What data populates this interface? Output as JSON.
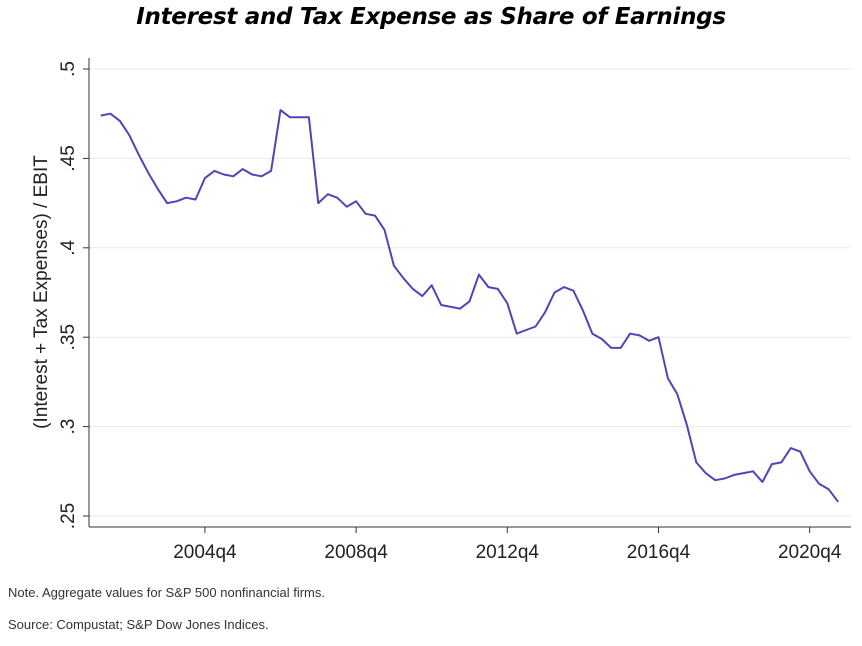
{
  "chart_data": {
    "type": "line",
    "title": "Interest and Tax Expense as Share of Earnings",
    "xlabel": "",
    "ylabel": "(Interest + Tax Expenses) / EBIT",
    "x_ticks": [
      "2004q4",
      "2008q4",
      "2012q4",
      "2016q4",
      "2020q4"
    ],
    "y_ticks": [
      ".25",
      ".3",
      ".35",
      ".4",
      ".45",
      ".5"
    ],
    "ylim": [
      0.25,
      0.5
    ],
    "xlim": [
      "2002q1",
      "2021q3"
    ],
    "grid": "horizontal",
    "line_color": "#4b47b8",
    "series": [
      {
        "x": [
          "2002q1",
          "2002q2",
          "2002q3",
          "2002q4",
          "2003q1",
          "2003q2",
          "2003q3",
          "2003q4",
          "2004q1",
          "2004q2",
          "2004q3",
          "2004q4",
          "2005q1",
          "2005q2",
          "2005q3",
          "2005q4",
          "2006q1",
          "2006q2",
          "2006q3",
          "2006q4",
          "2007q1",
          "2007q2",
          "2007q3",
          "2007q4",
          "2008q1",
          "2008q2",
          "2008q3",
          "2008q4",
          "2009q1",
          "2009q2",
          "2009q3",
          "2009q4",
          "2010q1",
          "2010q2",
          "2010q3",
          "2010q4",
          "2011q1",
          "2011q2",
          "2011q3",
          "2011q4",
          "2012q1",
          "2012q2",
          "2012q3",
          "2012q4",
          "2013q1",
          "2013q2",
          "2013q3",
          "2013q4",
          "2014q1",
          "2014q2",
          "2014q3",
          "2014q4",
          "2015q1",
          "2015q2",
          "2015q3",
          "2015q4",
          "2016q1",
          "2016q2",
          "2016q3",
          "2016q4",
          "2017q1",
          "2017q2",
          "2017q3",
          "2017q4",
          "2018q1",
          "2018q2",
          "2018q3",
          "2018q4",
          "2019q1",
          "2019q2",
          "2019q3",
          "2019q4",
          "2020q1",
          "2020q2",
          "2020q3",
          "2020q4",
          "2021q1",
          "2021q2",
          "2021q3"
        ],
        "values": [
          0.474,
          0.475,
          0.471,
          0.463,
          0.452,
          0.442,
          0.433,
          0.425,
          0.426,
          0.428,
          0.427,
          0.439,
          0.443,
          0.441,
          0.44,
          0.444,
          0.441,
          0.44,
          0.443,
          0.477,
          0.473,
          0.473,
          0.473,
          0.425,
          0.43,
          0.428,
          0.423,
          0.426,
          0.419,
          0.418,
          0.41,
          0.39,
          0.383,
          0.377,
          0.373,
          0.379,
          0.368,
          0.367,
          0.366,
          0.37,
          0.385,
          0.378,
          0.377,
          0.369,
          0.352,
          0.354,
          0.356,
          0.364,
          0.375,
          0.378,
          0.376,
          0.365,
          0.352,
          0.349,
          0.344,
          0.344,
          0.352,
          0.351,
          0.348,
          0.35,
          0.327,
          0.318,
          0.301,
          0.28,
          0.274,
          0.27,
          0.271,
          0.273,
          0.274,
          0.275,
          0.269,
          0.279,
          0.28,
          0.288,
          0.286,
          0.275,
          0.268,
          0.265,
          0.258
        ]
      }
    ]
  },
  "notes": {
    "note": "Note. Aggregate values for S&P 500 nonfinancial firms.",
    "source": "Source: Compustat; S&P Dow Jones Indices."
  }
}
